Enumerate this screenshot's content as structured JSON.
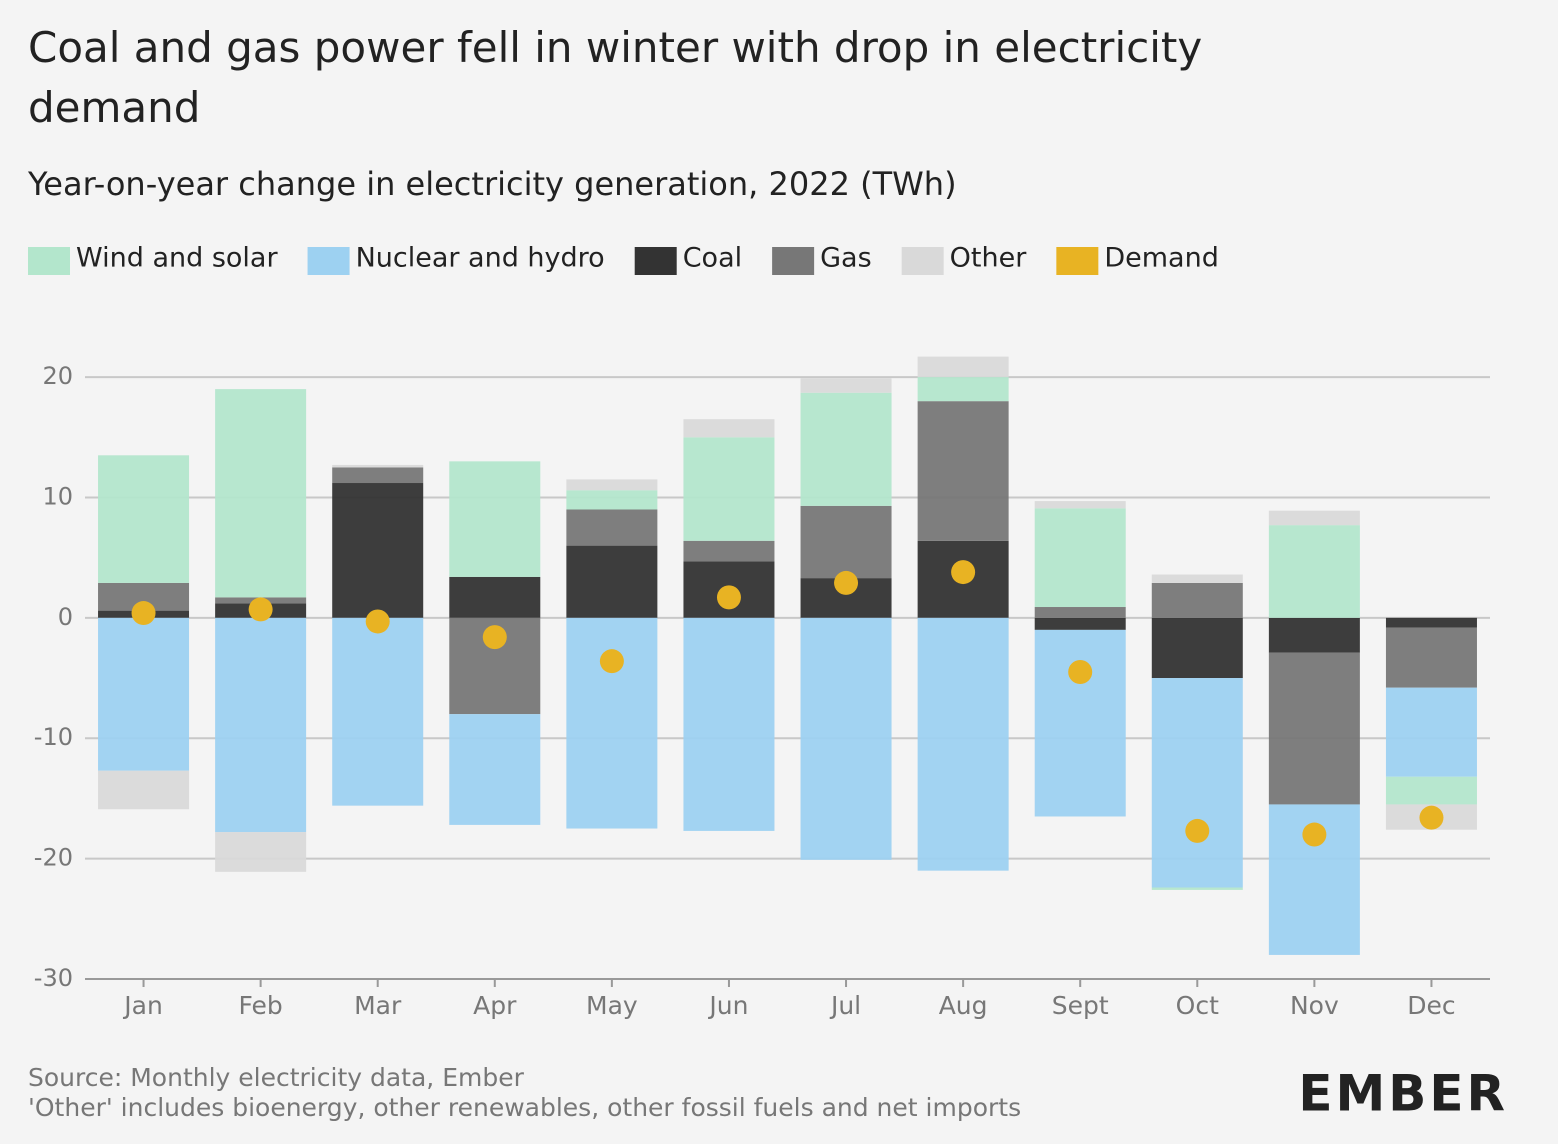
{
  "chart_data": {
    "type": "bar",
    "title": "Coal and gas power fell in winter with drop in electricity demand",
    "subtitle": "Year-on-year change in electricity generation, 2022 (TWh)",
    "source": "Source: Monthly electricity data, Ember",
    "note": "'Other' includes bioenergy, other renewables, other fossil fuels and net imports",
    "logo": "EMBER",
    "stacked": true,
    "grid": true,
    "legend": "top",
    "categories": [
      "Jan",
      "Feb",
      "Mar",
      "Apr",
      "May",
      "Jun",
      "Jul",
      "Aug",
      "Sept",
      "Oct",
      "Nov",
      "Dec"
    ],
    "series": [
      {
        "name": "Wind and solar",
        "color": "#b3e6cc",
        "values": [
          10.6,
          17.3,
          0,
          9.6,
          1.6,
          8.6,
          9.4,
          2.0,
          8.2,
          -0.2,
          7.7,
          -2.3
        ]
      },
      {
        "name": "Nuclear and hydro",
        "color": "#9dd1f1",
        "values": [
          -12.7,
          -17.8,
          -15.6,
          -9.2,
          -17.5,
          -17.7,
          -20.1,
          -21.0,
          -15.5,
          -17.4,
          -12.5,
          -7.4
        ]
      },
      {
        "name": "Coal",
        "color": "#333333",
        "values": [
          0.6,
          1.2,
          11.2,
          3.4,
          6.0,
          4.7,
          3.3,
          6.4,
          -1.0,
          -5.0,
          -2.9,
          -0.8
        ]
      },
      {
        "name": "Gas",
        "color": "#777777",
        "values": [
          2.3,
          0.5,
          1.3,
          -8.0,
          3.0,
          1.7,
          6.0,
          11.6,
          0.9,
          2.9,
          -12.6,
          -5.0
        ]
      },
      {
        "name": "Other",
        "color": "#d9d9d9",
        "values": [
          -3.2,
          -3.3,
          0.2,
          0,
          0.9,
          1.5,
          1.2,
          1.7,
          0.6,
          0.7,
          1.2,
          -2.1
        ]
      },
      {
        "name": "Demand",
        "color": "#e8b323",
        "type": "scatter",
        "values": [
          0.4,
          0.7,
          -0.3,
          -1.6,
          -3.6,
          1.7,
          2.9,
          3.8,
          -4.5,
          -17.7,
          -18.0,
          -16.6
        ]
      }
    ],
    "ylim": [
      -30,
      22
    ],
    "yticks": [
      -30,
      -20,
      -10,
      0,
      10,
      20
    ]
  }
}
